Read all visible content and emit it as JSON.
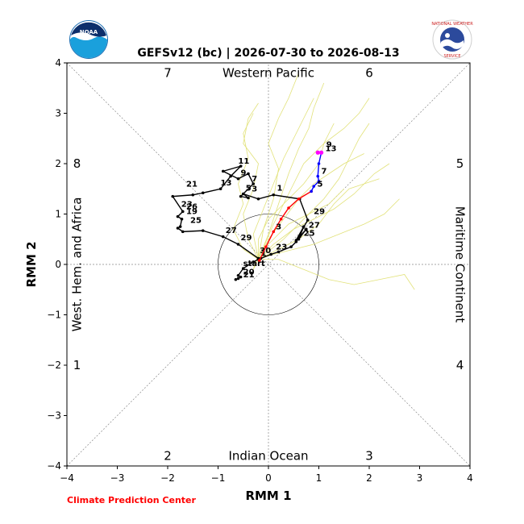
{
  "chart_data": {
    "type": "line",
    "title": "GEFSv12 (bc) | 2026-07-30 to 2026-08-13",
    "xlabel": "RMM 1",
    "ylabel": "RMM 2",
    "xlim": [
      -4,
      4
    ],
    "ylim": [
      -4,
      4
    ],
    "x_ticks": [
      "−4",
      "−3",
      "−2",
      "−1",
      "0",
      "1",
      "2",
      "3",
      "4"
    ],
    "y_ticks": [
      "−4",
      "−3",
      "−2",
      "−1",
      "0",
      "1",
      "2",
      "3",
      "4"
    ],
    "phase_numbers": [
      "1",
      "2",
      "3",
      "4",
      "5",
      "6",
      "7",
      "8"
    ],
    "region_labels": {
      "top": "Western Pacific",
      "bottom": "Indian Ocean",
      "left": "West. Hem. and Africa",
      "right": "Maritime Continent"
    },
    "observed_track": {
      "color": "#000000",
      "points": [
        [
          -0.65,
          -0.3
        ],
        [
          -0.6,
          -0.28
        ],
        [
          -0.55,
          -0.25
        ],
        [
          -0.6,
          -0.22
        ],
        [
          -0.5,
          -0.08
        ],
        [
          -0.3,
          0.05
        ],
        [
          -0.2,
          0.1
        ],
        [
          -0.15,
          0.12
        ],
        [
          0.05,
          0.2
        ],
        [
          0.2,
          0.25
        ],
        [
          0.45,
          0.35
        ],
        [
          0.55,
          0.45
        ],
        [
          0.62,
          0.55
        ],
        [
          0.75,
          0.7
        ],
        [
          0.6,
          0.5
        ],
        [
          0.7,
          0.75
        ],
        [
          0.55,
          0.48
        ],
        [
          0.78,
          0.88
        ],
        [
          0.62,
          1.3
        ],
        [
          0.1,
          1.38
        ],
        [
          -0.2,
          1.3
        ],
        [
          -0.5,
          1.4
        ],
        [
          -0.4,
          1.32
        ],
        [
          -0.55,
          1.35
        ],
        [
          -0.3,
          1.6
        ],
        [
          -0.4,
          1.8
        ],
        [
          -0.6,
          1.7
        ],
        [
          -0.9,
          1.85
        ],
        [
          -0.55,
          1.95
        ],
        [
          -0.75,
          1.75
        ],
        [
          -0.95,
          1.5
        ],
        [
          -1.3,
          1.42
        ],
        [
          -1.5,
          1.38
        ],
        [
          -1.9,
          1.35
        ],
        [
          -1.7,
          1.05
        ],
        [
          -1.8,
          0.95
        ],
        [
          -1.72,
          0.9
        ],
        [
          -1.75,
          0.75
        ],
        [
          -1.8,
          0.72
        ],
        [
          -1.7,
          0.65
        ],
        [
          -1.3,
          0.67
        ],
        [
          -0.9,
          0.55
        ],
        [
          -0.6,
          0.4
        ],
        [
          -0.2,
          0.12
        ],
        [
          -0.18,
          0.08
        ]
      ],
      "labels": [
        {
          "text": "start",
          "x": -0.55,
          "y": -0.08
        },
        {
          "text": "20",
          "x": -0.55,
          "y": -0.25
        },
        {
          "text": "21",
          "x": -0.55,
          "y": -0.3
        },
        {
          "text": "23",
          "x": 0.1,
          "y": 0.25
        },
        {
          "text": "25",
          "x": 0.65,
          "y": 0.52
        },
        {
          "text": "27",
          "x": 0.75,
          "y": 0.68
        },
        {
          "text": "29",
          "x": 0.85,
          "y": 0.95
        },
        {
          "text": "1",
          "x": 0.12,
          "y": 1.42
        },
        {
          "text": "3",
          "x": -0.38,
          "y": 1.4
        },
        {
          "text": "5",
          "x": -0.5,
          "y": 1.42
        },
        {
          "text": "7",
          "x": -0.38,
          "y": 1.6
        },
        {
          "text": "9",
          "x": -0.6,
          "y": 1.72
        },
        {
          "text": "11",
          "x": -0.65,
          "y": 1.95
        },
        {
          "text": "13",
          "x": -1.0,
          "y": 1.52
        },
        {
          "text": "21",
          "x": -1.68,
          "y": 1.5
        },
        {
          "text": "23",
          "x": -1.78,
          "y": 1.1
        },
        {
          "text": "26",
          "x": -1.68,
          "y": 1.05
        },
        {
          "text": "19",
          "x": -1.68,
          "y": 0.95
        },
        {
          "text": "25",
          "x": -1.6,
          "y": 0.78
        },
        {
          "text": "27",
          "x": -0.9,
          "y": 0.58
        },
        {
          "text": "29",
          "x": -0.6,
          "y": 0.43
        },
        {
          "text": "30",
          "x": -0.22,
          "y": 0.18
        },
        {
          "text": "1",
          "x": -0.2,
          "y": 0.12
        }
      ]
    },
    "forecast_week1": {
      "color": "#ff0000",
      "points": [
        [
          -0.18,
          0.08
        ],
        [
          -0.05,
          0.35
        ],
        [
          0.1,
          0.65
        ],
        [
          0.25,
          0.9
        ],
        [
          0.4,
          1.12
        ],
        [
          0.6,
          1.3
        ],
        [
          0.85,
          1.45
        ]
      ],
      "labels": [
        {
          "text": "3",
          "x": 0.1,
          "y": 0.65
        }
      ]
    },
    "forecast_week2": {
      "color": "#0000ff",
      "points": [
        [
          0.85,
          1.45
        ],
        [
          0.9,
          1.55
        ],
        [
          1.0,
          1.65
        ],
        [
          0.98,
          1.75
        ],
        [
          1.0,
          2.0
        ],
        [
          1.05,
          2.22
        ]
      ],
      "labels": [
        {
          "text": "5",
          "x": 0.92,
          "y": 1.5
        },
        {
          "text": "7",
          "x": 1.0,
          "y": 1.75
        }
      ]
    },
    "forecast_end": {
      "color": "#ff00ff",
      "points": [
        [
          1.05,
          2.22
        ],
        [
          0.98,
          2.22
        ]
      ],
      "labels": [
        {
          "text": "9",
          "x": 1.1,
          "y": 2.28
        },
        {
          "text": "13",
          "x": 1.08,
          "y": 2.2
        }
      ]
    },
    "ensemble_color": "#e2e27a",
    "ensemble_members": [
      [
        [
          -0.2,
          0.1
        ],
        [
          -0.3,
          0.6
        ],
        [
          -0.1,
          1.1
        ],
        [
          0.1,
          1.6
        ],
        [
          0.3,
          2.1
        ],
        [
          0.5,
          2.5
        ],
        [
          0.7,
          2.9
        ],
        [
          0.9,
          3.3
        ]
      ],
      [
        [
          -0.2,
          0.1
        ],
        [
          0.0,
          0.5
        ],
        [
          0.3,
          0.9
        ],
        [
          0.6,
          1.3
        ],
        [
          0.9,
          1.6
        ],
        [
          1.2,
          1.8
        ],
        [
          1.5,
          2.0
        ],
        [
          1.9,
          2.2
        ]
      ],
      [
        [
          -0.2,
          0.1
        ],
        [
          0.1,
          0.4
        ],
        [
          0.5,
          0.7
        ],
        [
          0.9,
          0.9
        ],
        [
          1.3,
          1.1
        ],
        [
          1.7,
          1.4
        ],
        [
          2.1,
          1.8
        ],
        [
          2.4,
          2.0
        ]
      ],
      [
        [
          -0.2,
          0.1
        ],
        [
          -0.4,
          0.5
        ],
        [
          -0.5,
          1.0
        ],
        [
          -0.3,
          1.5
        ],
        [
          -0.2,
          2.0
        ],
        [
          -0.5,
          2.4
        ],
        [
          -0.4,
          2.9
        ],
        [
          -0.2,
          3.2
        ]
      ],
      [
        [
          -0.2,
          0.1
        ],
        [
          0.2,
          0.3
        ],
        [
          0.6,
          0.5
        ],
        [
          1.0,
          0.8
        ],
        [
          1.3,
          1.2
        ],
        [
          1.6,
          1.5
        ],
        [
          1.9,
          1.6
        ],
        [
          2.2,
          1.7
        ]
      ],
      [
        [
          -0.2,
          0.1
        ],
        [
          0.0,
          0.6
        ],
        [
          0.2,
          1.2
        ],
        [
          0.4,
          1.8
        ],
        [
          0.6,
          2.3
        ],
        [
          0.8,
          2.7
        ],
        [
          0.9,
          3.1
        ],
        [
          1.1,
          3.6
        ]
      ],
      [
        [
          -0.2,
          0.1
        ],
        [
          -0.1,
          0.7
        ],
        [
          0.1,
          1.3
        ],
        [
          0.2,
          1.9
        ],
        [
          0.0,
          2.4
        ],
        [
          0.2,
          2.9
        ],
        [
          0.4,
          3.3
        ],
        [
          0.6,
          3.8
        ]
      ],
      [
        [
          -0.2,
          0.1
        ],
        [
          0.3,
          0.5
        ],
        [
          0.7,
          0.9
        ],
        [
          1.1,
          1.3
        ],
        [
          1.4,
          1.7
        ],
        [
          1.6,
          2.1
        ],
        [
          1.8,
          2.5
        ],
        [
          2.0,
          2.8
        ]
      ],
      [
        [
          -0.2,
          0.1
        ],
        [
          0.1,
          0.2
        ],
        [
          0.5,
          0.3
        ],
        [
          0.9,
          0.4
        ],
        [
          1.4,
          0.6
        ],
        [
          1.9,
          0.8
        ],
        [
          2.3,
          1.0
        ],
        [
          2.6,
          1.3
        ]
      ],
      [
        [
          -0.2,
          0.1
        ],
        [
          -0.2,
          0.5
        ],
        [
          0.0,
          0.9
        ],
        [
          0.3,
          1.2
        ],
        [
          0.7,
          1.6
        ],
        [
          1.0,
          2.0
        ],
        [
          1.1,
          2.4
        ],
        [
          1.3,
          2.8
        ]
      ],
      [
        [
          -0.2,
          0.1
        ],
        [
          0.2,
          0.1
        ],
        [
          0.7,
          -0.1
        ],
        [
          1.2,
          -0.3
        ],
        [
          1.7,
          -0.4
        ],
        [
          2.2,
          -0.3
        ],
        [
          2.7,
          -0.2
        ],
        [
          2.9,
          -0.5
        ]
      ],
      [
        [
          -0.2,
          0.1
        ],
        [
          -0.5,
          0.3
        ],
        [
          -0.7,
          0.7
        ],
        [
          -0.5,
          1.2
        ],
        [
          -0.6,
          1.6
        ],
        [
          -0.4,
          2.1
        ],
        [
          -0.5,
          2.6
        ],
        [
          -0.3,
          3.0
        ]
      ],
      [
        [
          -0.2,
          0.1
        ],
        [
          0.1,
          0.8
        ],
        [
          0.4,
          1.4
        ],
        [
          0.7,
          2.0
        ],
        [
          1.1,
          2.4
        ],
        [
          1.5,
          2.7
        ],
        [
          1.8,
          3.0
        ],
        [
          2.0,
          3.3
        ]
      ],
      [
        [
          -0.2,
          0.1
        ],
        [
          -0.3,
          -0.1
        ],
        [
          -0.2,
          0.2
        ],
        [
          0.1,
          0.5
        ],
        [
          0.4,
          0.8
        ],
        [
          0.8,
          1.0
        ],
        [
          1.2,
          1.2
        ],
        [
          1.5,
          1.5
        ]
      ]
    ]
  },
  "credit": "Climate Prediction Center"
}
